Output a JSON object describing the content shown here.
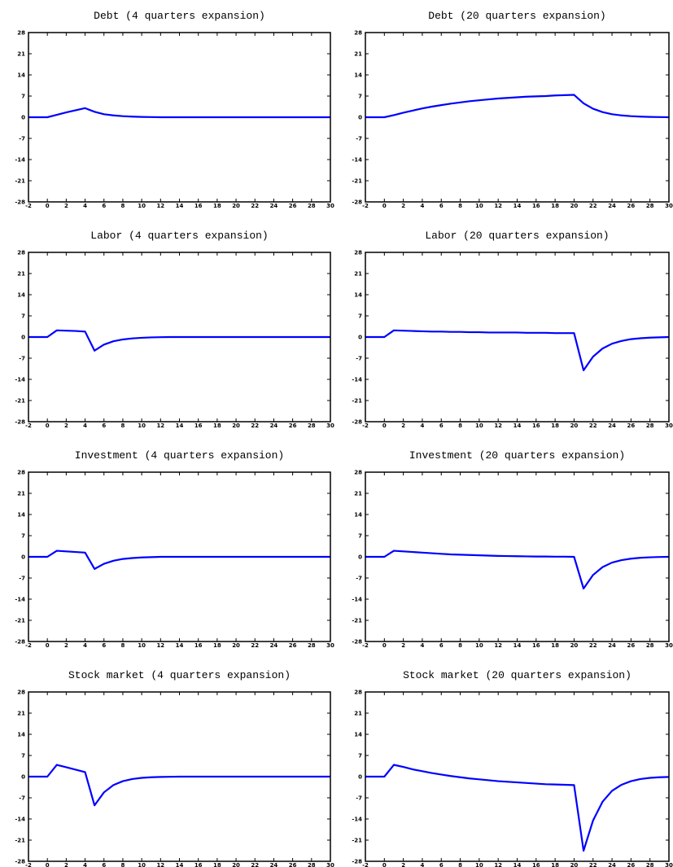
{
  "chart_data": [
    {
      "type": "line",
      "title": "Debt (4 quarters expansion)",
      "x": [
        -2,
        -1,
        0,
        1,
        2,
        3,
        4,
        5,
        6,
        7,
        8,
        9,
        10,
        11,
        12,
        13,
        14,
        15,
        16,
        17,
        18,
        19,
        20,
        21,
        22,
        23,
        24,
        25,
        26,
        27,
        28,
        29,
        30
      ],
      "values": [
        0,
        0,
        0,
        0.8,
        1.6,
        2.3,
        3.0,
        1.8,
        1.0,
        0.6,
        0.35,
        0.2,
        0.1,
        0.05,
        0,
        0,
        0,
        0,
        0,
        0,
        0,
        0,
        0,
        0,
        0,
        0,
        0,
        0,
        0,
        0,
        0,
        0,
        0
      ],
      "color": "#0000ff",
      "xlim": [
        -2,
        30
      ],
      "ylim": [
        -28,
        28
      ],
      "xticks": [
        -2,
        0,
        2,
        4,
        6,
        8,
        10,
        12,
        14,
        16,
        18,
        20,
        22,
        24,
        26,
        28,
        30
      ],
      "yticks": [
        -28,
        -21,
        -14,
        -7,
        0,
        7,
        14,
        21,
        28
      ]
    },
    {
      "type": "line",
      "title": "Debt (20 quarters expansion)",
      "x": [
        -2,
        -1,
        0,
        1,
        2,
        3,
        4,
        5,
        6,
        7,
        8,
        9,
        10,
        11,
        12,
        13,
        14,
        15,
        16,
        17,
        18,
        19,
        20,
        21,
        22,
        23,
        24,
        25,
        26,
        27,
        28,
        29,
        30
      ],
      "values": [
        0,
        0,
        0,
        0.7,
        1.5,
        2.2,
        2.9,
        3.5,
        4.0,
        4.5,
        4.9,
        5.3,
        5.6,
        5.9,
        6.2,
        6.4,
        6.6,
        6.8,
        6.9,
        7.0,
        7.2,
        7.3,
        7.4,
        4.6,
        2.8,
        1.7,
        1.0,
        0.6,
        0.35,
        0.2,
        0.1,
        0.05,
        0
      ],
      "color": "#0000ff",
      "xlim": [
        -2,
        30
      ],
      "ylim": [
        -28,
        28
      ],
      "xticks": [
        -2,
        0,
        2,
        4,
        6,
        8,
        10,
        12,
        14,
        16,
        18,
        20,
        22,
        24,
        26,
        28,
        30
      ],
      "yticks": [
        -28,
        -21,
        -14,
        -7,
        0,
        7,
        14,
        21,
        28
      ]
    },
    {
      "type": "line",
      "title": "Labor (4 quarters expansion)",
      "x": [
        -2,
        -1,
        0,
        1,
        2,
        3,
        4,
        5,
        6,
        7,
        8,
        9,
        10,
        11,
        12,
        13,
        14,
        15,
        16,
        17,
        18,
        19,
        20,
        21,
        22,
        23,
        24,
        25,
        26,
        27,
        28,
        29,
        30
      ],
      "values": [
        0,
        0,
        0,
        2.2,
        2.1,
        2.0,
        1.8,
        -4.5,
        -2.5,
        -1.4,
        -0.8,
        -0.45,
        -0.25,
        -0.12,
        -0.05,
        0,
        0,
        0,
        0,
        0,
        0,
        0,
        0,
        0,
        0,
        0,
        0,
        0,
        0,
        0,
        0,
        0,
        0
      ],
      "color": "#0000ff",
      "xlim": [
        -2,
        30
      ],
      "ylim": [
        -28,
        28
      ],
      "xticks": [
        -2,
        0,
        2,
        4,
        6,
        8,
        10,
        12,
        14,
        16,
        18,
        20,
        22,
        24,
        26,
        28,
        30
      ],
      "yticks": [
        -28,
        -21,
        -14,
        -7,
        0,
        7,
        14,
        21,
        28
      ]
    },
    {
      "type": "line",
      "title": "Labor (20 quarters expansion)",
      "x": [
        -2,
        -1,
        0,
        1,
        2,
        3,
        4,
        5,
        6,
        7,
        8,
        9,
        10,
        11,
        12,
        13,
        14,
        15,
        16,
        17,
        18,
        19,
        20,
        21,
        22,
        23,
        24,
        25,
        26,
        27,
        28,
        29,
        30
      ],
      "values": [
        0,
        0,
        0,
        2.2,
        2.1,
        2.0,
        1.9,
        1.8,
        1.8,
        1.7,
        1.7,
        1.6,
        1.6,
        1.5,
        1.5,
        1.5,
        1.5,
        1.4,
        1.4,
        1.4,
        1.3,
        1.3,
        1.3,
        -11,
        -6.5,
        -3.8,
        -2.2,
        -1.3,
        -0.7,
        -0.4,
        -0.2,
        -0.1,
        0
      ],
      "color": "#0000ff",
      "xlim": [
        -2,
        30
      ],
      "ylim": [
        -28,
        28
      ],
      "xticks": [
        -2,
        0,
        2,
        4,
        6,
        8,
        10,
        12,
        14,
        16,
        18,
        20,
        22,
        24,
        26,
        28,
        30
      ],
      "yticks": [
        -28,
        -21,
        -14,
        -7,
        0,
        7,
        14,
        21,
        28
      ]
    },
    {
      "type": "line",
      "title": "Investment (4 quarters expansion)",
      "x": [
        -2,
        -1,
        0,
        1,
        2,
        3,
        4,
        5,
        6,
        7,
        8,
        9,
        10,
        11,
        12,
        13,
        14,
        15,
        16,
        17,
        18,
        19,
        20,
        21,
        22,
        23,
        24,
        25,
        26,
        27,
        28,
        29,
        30
      ],
      "values": [
        0,
        0,
        0,
        2.0,
        1.8,
        1.6,
        1.4,
        -4.0,
        -2.3,
        -1.3,
        -0.7,
        -0.4,
        -0.2,
        -0.1,
        0,
        0,
        0,
        0,
        0,
        0,
        0,
        0,
        0,
        0,
        0,
        0,
        0,
        0,
        0,
        0,
        0,
        0,
        0
      ],
      "color": "#0000ff",
      "xlim": [
        -2,
        30
      ],
      "ylim": [
        -28,
        28
      ],
      "xticks": [
        -2,
        0,
        2,
        4,
        6,
        8,
        10,
        12,
        14,
        16,
        18,
        20,
        22,
        24,
        26,
        28,
        30
      ],
      "yticks": [
        -28,
        -21,
        -14,
        -7,
        0,
        7,
        14,
        21,
        28
      ]
    },
    {
      "type": "line",
      "title": "Investment (20 quarters expansion)",
      "x": [
        -2,
        -1,
        0,
        1,
        2,
        3,
        4,
        5,
        6,
        7,
        8,
        9,
        10,
        11,
        12,
        13,
        14,
        15,
        16,
        17,
        18,
        19,
        20,
        21,
        22,
        23,
        24,
        25,
        26,
        27,
        28,
        29,
        30
      ],
      "values": [
        0,
        0,
        0,
        2.0,
        1.8,
        1.6,
        1.4,
        1.2,
        1.0,
        0.8,
        0.7,
        0.6,
        0.5,
        0.4,
        0.3,
        0.25,
        0.2,
        0.15,
        0.1,
        0.1,
        0.05,
        0.05,
        0,
        -10.5,
        -6.0,
        -3.4,
        -1.9,
        -1.1,
        -0.6,
        -0.3,
        -0.15,
        -0.05,
        0
      ],
      "color": "#0000ff",
      "xlim": [
        -2,
        30
      ],
      "ylim": [
        -28,
        28
      ],
      "xticks": [
        -2,
        0,
        2,
        4,
        6,
        8,
        10,
        12,
        14,
        16,
        18,
        20,
        22,
        24,
        26,
        28,
        30
      ],
      "yticks": [
        -28,
        -21,
        -14,
        -7,
        0,
        7,
        14,
        21,
        28
      ]
    },
    {
      "type": "line",
      "title": "Stock market (4 quarters expansion)",
      "x": [
        -2,
        -1,
        0,
        1,
        2,
        3,
        4,
        5,
        6,
        7,
        8,
        9,
        10,
        11,
        12,
        13,
        14,
        15,
        16,
        17,
        18,
        19,
        20,
        21,
        22,
        23,
        24,
        25,
        26,
        27,
        28,
        29,
        30
      ],
      "values": [
        0,
        0,
        0,
        3.9,
        3.1,
        2.3,
        1.5,
        -9.5,
        -5.2,
        -2.8,
        -1.5,
        -0.8,
        -0.4,
        -0.2,
        -0.1,
        -0.05,
        0,
        0,
        0,
        0,
        0,
        0,
        0,
        0,
        0,
        0,
        0,
        0,
        0,
        0,
        0,
        0,
        0
      ],
      "color": "#0000ff",
      "xlim": [
        -2,
        30
      ],
      "ylim": [
        -28,
        28
      ],
      "xticks": [
        -2,
        0,
        2,
        4,
        6,
        8,
        10,
        12,
        14,
        16,
        18,
        20,
        22,
        24,
        26,
        28,
        30
      ],
      "yticks": [
        -28,
        -21,
        -14,
        -7,
        0,
        7,
        14,
        21,
        28
      ]
    },
    {
      "type": "line",
      "title": "Stock market (20 quarters expansion)",
      "x": [
        -2,
        -1,
        0,
        1,
        2,
        3,
        4,
        5,
        6,
        7,
        8,
        9,
        10,
        11,
        12,
        13,
        14,
        15,
        16,
        17,
        18,
        19,
        20,
        21,
        22,
        23,
        24,
        25,
        26,
        27,
        28,
        29,
        30
      ],
      "values": [
        0,
        0,
        0,
        3.9,
        3.2,
        2.4,
        1.8,
        1.2,
        0.7,
        0.2,
        -0.2,
        -0.6,
        -0.9,
        -1.2,
        -1.5,
        -1.7,
        -1.9,
        -2.1,
        -2.3,
        -2.5,
        -2.6,
        -2.7,
        -2.8,
        -24.5,
        -14.5,
        -8.3,
        -4.7,
        -2.7,
        -1.5,
        -0.8,
        -0.4,
        -0.2,
        -0.1
      ],
      "color": "#0000ff",
      "xlim": [
        -2,
        30
      ],
      "ylim": [
        -28,
        28
      ],
      "xticks": [
        -2,
        0,
        2,
        4,
        6,
        8,
        10,
        12,
        14,
        16,
        18,
        20,
        22,
        24,
        26,
        28,
        30
      ],
      "yticks": [
        -28,
        -21,
        -14,
        -7,
        0,
        7,
        14,
        21,
        28
      ]
    }
  ]
}
